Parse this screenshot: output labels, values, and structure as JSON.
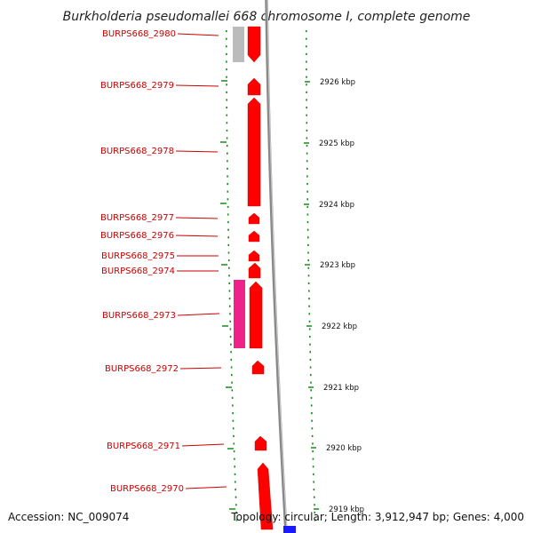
{
  "title": "Burkholderia pseudomallei 668 chromosome I, complete genome",
  "footer": {
    "accession": "Accession: NC_009074",
    "summary": "Topology: circular; Length: 3,912,947 bp; Genes: 4,000"
  },
  "colors": {
    "gene": "#ff0000",
    "gene_dark": "#cc0000",
    "gene_gray": "#bbbbbb",
    "gene_pink": "#ee2288",
    "backbone": "#888888",
    "dots": "#1a8a1a",
    "blue": "#1a1aff"
  },
  "genes": [
    {
      "label": "BURPS668_2980"
    },
    {
      "label": "BURPS668_2979"
    },
    {
      "label": "BURPS668_2978"
    },
    {
      "label": "BURPS668_2977"
    },
    {
      "label": "BURPS668_2976"
    },
    {
      "label": "BURPS668_2975"
    },
    {
      "label": "BURPS668_2974"
    },
    {
      "label": "BURPS668_2973"
    },
    {
      "label": "BURPS668_2972"
    },
    {
      "label": "BURPS668_2971"
    },
    {
      "label": "BURPS668_2970"
    }
  ],
  "scale": [
    {
      "label": "2926 kbp"
    },
    {
      "label": "2925 kbp"
    },
    {
      "label": "2924 kbp"
    },
    {
      "label": "2923 kbp"
    },
    {
      "label": "2922 kbp"
    },
    {
      "label": "2921 kbp"
    },
    {
      "label": "2920 kbp"
    },
    {
      "label": "2919 kbp"
    }
  ]
}
